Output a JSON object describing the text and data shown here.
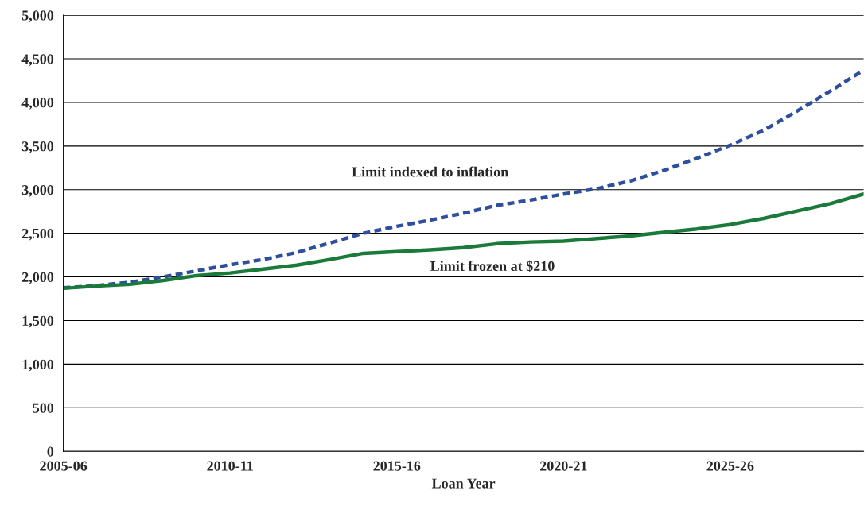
{
  "chart_data": {
    "type": "line",
    "xlabel": "Loan Year",
    "categories": [
      "2005-06",
      null,
      null,
      null,
      null,
      "2010-11",
      null,
      null,
      null,
      null,
      "2015-16",
      null,
      null,
      null,
      null,
      "2020-21",
      null,
      null,
      null,
      null,
      "2025-26",
      null,
      null,
      null,
      null
    ],
    "series": [
      {
        "name": "Limit indexed to inflation",
        "color": "#2e4e9e",
        "line_style": "dashed",
        "values": [
          1875,
          1900,
          1940,
          2000,
          2070,
          2140,
          2200,
          2280,
          2390,
          2500,
          2580,
          2650,
          2730,
          2820,
          2880,
          2950,
          3010,
          3100,
          3220,
          3360,
          3510,
          3680,
          3900,
          4130,
          4370
        ]
      },
      {
        "name": "Limit frozen at $210",
        "color": "#1a7a3a",
        "line_style": "solid",
        "values": [
          1870,
          1895,
          1915,
          1960,
          2015,
          2045,
          2090,
          2135,
          2200,
          2270,
          2290,
          2310,
          2335,
          2380,
          2400,
          2410,
          2440,
          2470,
          2510,
          2550,
          2600,
          2670,
          2755,
          2840,
          2950
        ]
      }
    ],
    "ylim": [
      0,
      5000
    ],
    "yticks": [
      {
        "value": 0,
        "label": "0"
      },
      {
        "value": 500,
        "label": "500"
      },
      {
        "value": 1000,
        "label": "1,000"
      },
      {
        "value": 1500,
        "label": "1,500"
      },
      {
        "value": 2000,
        "label": "2,000"
      },
      {
        "value": 2500,
        "label": "2,500"
      },
      {
        "value": 3000,
        "label": "3,000"
      },
      {
        "value": 3500,
        "label": "3,500"
      },
      {
        "value": 4000,
        "label": "4,000"
      },
      {
        "value": 4500,
        "label": "4,500"
      },
      {
        "value": 5000,
        "label": "5,000"
      }
    ],
    "grid": "y",
    "legend": false,
    "marker": "none"
  }
}
